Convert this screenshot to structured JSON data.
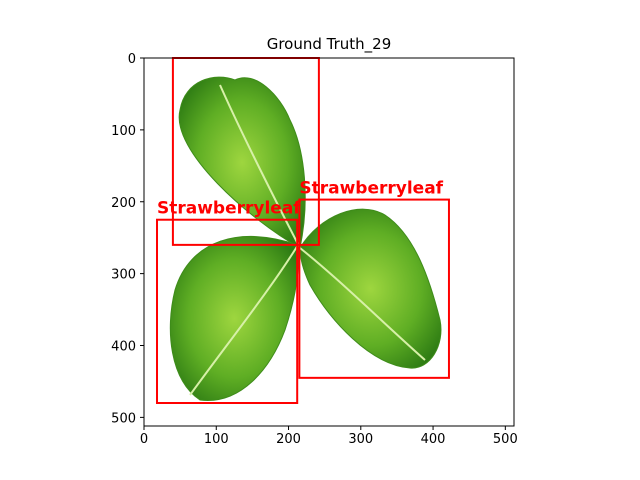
{
  "chart_data": {
    "type": "image_with_boxes",
    "title": "Ground Truth_29",
    "xlim": [
      0,
      512
    ],
    "ylim": [
      512,
      0
    ],
    "x_ticks": [
      0,
      100,
      200,
      300,
      400,
      500
    ],
    "y_ticks": [
      0,
      100,
      200,
      300,
      400,
      500
    ],
    "grid": false,
    "box_color": "#ff0000",
    "boxes": [
      {
        "label": "",
        "x1": 40,
        "y1": 0,
        "x2": 242,
        "y2": 260
      },
      {
        "label": "Strawberryleaf",
        "x1": 18,
        "y1": 225,
        "x2": 212,
        "y2": 480
      },
      {
        "label": "Strawberryleaf",
        "x1": 215,
        "y1": 197,
        "x2": 422,
        "y2": 445
      }
    ]
  },
  "colors": {
    "leaf_light": "#9ed63f",
    "leaf_mid": "#5fae24",
    "leaf_dark": "#2f7d14",
    "vein": "#d7f0a8"
  }
}
